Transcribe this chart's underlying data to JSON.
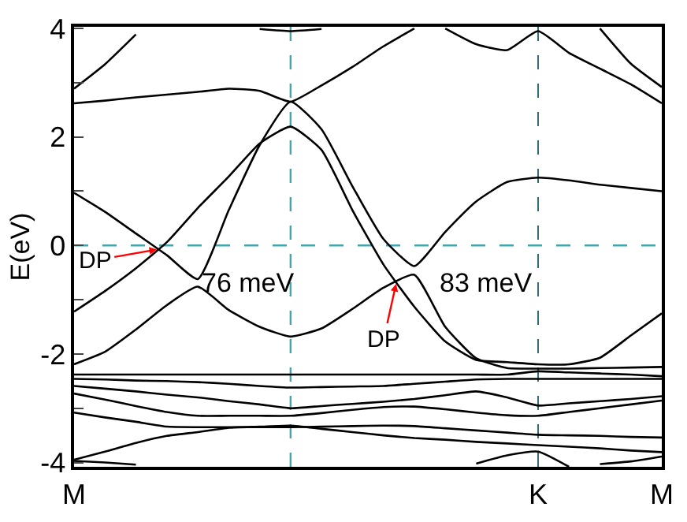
{
  "chart_data": {
    "type": "line",
    "ylabel": "E(eV)",
    "grid": "x",
    "marker": "none",
    "line_style": "solid",
    "categories": [
      "M",
      null,
      null,
      null,
      null,
      null,
      null,
      null,
      null,
      null,
      null,
      null,
      null,
      null,
      null,
      "K",
      null,
      null,
      null,
      "M"
    ],
    "ylim": [
      -4.08,
      4.03
    ],
    "yticks": [
      -4,
      {
        "value": -3,
        "label": null
      },
      -2,
      {
        "value": -1,
        "label": null
      },
      0,
      {
        "value": 1,
        "label": null
      },
      2,
      {
        "value": 3,
        "label": null
      },
      4
    ],
    "ref_lines": [
      {
        "axis": "y",
        "value": 0,
        "color": "#45a5ad",
        "line_style": "dashed"
      }
    ],
    "annotations": [
      {
        "text": "DP",
        "y": -0.07
      },
      "76 meV",
      {
        "text": "DP",
        "y": -0.68
      },
      "83 meV"
    ],
    "series": [
      {
        "color": "#000000",
        "values": [
          2.89,
          3.34,
          3.89,
          null,
          null,
          null,
          null,
          null,
          null,
          null,
          null,
          null,
          null,
          null,
          null,
          null,
          null,
          null,
          null,
          null
        ]
      },
      {
        "color": "#000000",
        "values": [
          2.62,
          2.67,
          2.73,
          2.78,
          2.83,
          2.89,
          2.85,
          2.65,
          2.95,
          3.29,
          3.67,
          4.0,
          null,
          null,
          null,
          null,
          null,
          null,
          null,
          null
        ]
      },
      {
        "color": "#000000",
        "values": [
          0.97,
          0.62,
          0.22,
          -0.18,
          -0.62,
          0.65,
          1.85,
          2.65,
          2.14,
          1.09,
          0.12,
          -0.38,
          0.25,
          0.81,
          1.17,
          1.25,
          1.2,
          1.12,
          1.06,
          1.0
        ]
      },
      {
        "color": "#000000",
        "values": [
          -1.22,
          -0.84,
          -0.42,
          0.06,
          0.69,
          1.27,
          1.88,
          2.19,
          1.76,
          0.65,
          -0.35,
          -1.13,
          -1.77,
          -2.11,
          -2.15,
          -2.19,
          -2.19,
          -2.07,
          -1.66,
          -1.25
        ]
      },
      {
        "color": "#000000",
        "values": [
          -2.19,
          -1.96,
          -1.55,
          -1.1,
          -0.76,
          -1.19,
          -1.5,
          -1.68,
          -1.53,
          -1.17,
          -0.78,
          -0.54,
          -1.5,
          -2.08,
          -2.26,
          -2.27,
          -2.27,
          -2.26,
          -2.25,
          -2.24
        ]
      },
      {
        "color": "#000000",
        "values": [
          null,
          null,
          null,
          null,
          null,
          null,
          null,
          null,
          null,
          null,
          null,
          null,
          4.0,
          3.71,
          3.6,
          3.95,
          3.55,
          3.26,
          2.97,
          2.62
        ]
      },
      {
        "color": "#000000",
        "values": [
          null,
          null,
          null,
          null,
          null,
          null,
          null,
          null,
          null,
          null,
          null,
          null,
          null,
          null,
          null,
          null,
          null,
          4.0,
          3.35,
          2.92
        ]
      },
      {
        "color": "#000000",
        "values": [
          null,
          null,
          null,
          null,
          null,
          null,
          3.99,
          3.95,
          3.99,
          null,
          null,
          null,
          null,
          null,
          null,
          null,
          null,
          null,
          null,
          null
        ]
      },
      {
        "color": "#000000",
        "values": [
          -2.38,
          -2.38,
          -2.38,
          -2.38,
          -2.38,
          -2.38,
          -2.38,
          -2.38,
          -2.38,
          -2.38,
          -2.38,
          -2.38,
          -2.38,
          -2.38,
          -2.38,
          -2.32,
          -2.34,
          -2.36,
          -2.38,
          -2.41
        ]
      },
      {
        "color": "#000000",
        "values": [
          -2.46,
          -2.47,
          -2.49,
          -2.5,
          -2.52,
          -2.55,
          -2.59,
          -2.62,
          -2.61,
          -2.6,
          -2.59,
          -2.55,
          -2.51,
          -2.47,
          -2.46,
          -2.46,
          -2.46,
          -2.46,
          -2.46,
          -2.46
        ]
      },
      {
        "color": "#000000",
        "values": [
          -2.59,
          -2.64,
          -2.69,
          -2.75,
          -2.8,
          -2.87,
          -2.93,
          -3.0,
          -2.96,
          -2.92,
          -2.88,
          -2.83,
          -2.76,
          -2.69,
          -2.8,
          -2.95,
          -2.91,
          -2.87,
          -2.83,
          -2.78
        ]
      },
      {
        "color": "#000000",
        "values": [
          -2.73,
          -2.84,
          -2.96,
          -3.07,
          -3.14,
          -3.14,
          -3.14,
          -3.14,
          -3.09,
          -3.03,
          -2.98,
          -2.97,
          -3.02,
          -3.08,
          -3.13,
          -3.14,
          -3.07,
          -3.0,
          -2.93,
          -2.86
        ]
      },
      {
        "color": "#000000",
        "values": [
          -3.08,
          -3.17,
          -3.25,
          -3.34,
          -3.35,
          -3.35,
          -3.35,
          -3.35,
          -3.34,
          -3.33,
          -3.32,
          -3.33,
          -3.37,
          -3.41,
          -3.45,
          -3.49,
          -3.5,
          -3.51,
          -3.53,
          -3.54
        ]
      },
      {
        "color": "#000000",
        "values": [
          -3.95,
          -3.8,
          -3.64,
          -3.51,
          -3.44,
          -3.36,
          -3.34,
          -3.32,
          -3.38,
          -3.44,
          -3.5,
          -3.55,
          -3.58,
          -3.62,
          -3.65,
          -3.68,
          -3.71,
          -3.74,
          -3.78,
          -3.81
        ]
      },
      {
        "color": "#000000",
        "values": [
          -3.97,
          -4.0,
          -4.04,
          null,
          null,
          null,
          null,
          null,
          null,
          null,
          null,
          null,
          null,
          null,
          null,
          null,
          null,
          null,
          null,
          null
        ]
      },
      {
        "color": "#000000",
        "values": [
          null,
          null,
          null,
          null,
          null,
          null,
          null,
          null,
          null,
          null,
          null,
          null,
          null,
          -4.02,
          -3.87,
          -3.8,
          -4.08,
          null,
          null,
          null
        ]
      },
      {
        "color": "#000000",
        "values": [
          null,
          null,
          null,
          null,
          null,
          null,
          null,
          null,
          null,
          null,
          null,
          null,
          null,
          null,
          null,
          null,
          null,
          -4.03,
          -3.98,
          -3.89
        ]
      }
    ]
  }
}
